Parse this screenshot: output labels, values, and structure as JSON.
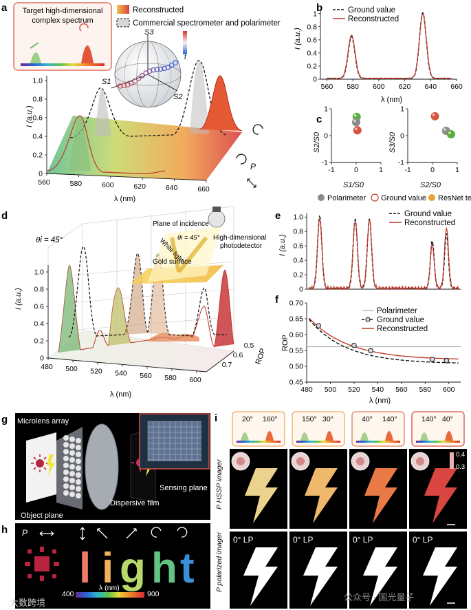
{
  "panels": {
    "a": {
      "label": "a",
      "inset_title_line1": "Target high-dimensional",
      "inset_title_line2": "complex spectrum",
      "legend_reconstructed": "Reconstructed",
      "legend_commercial": "Commercial spectrometer and polarimeter",
      "sphere_s1": "S1",
      "sphere_s2": "S2",
      "sphere_s3": "S3",
      "sphere_t": "t",
      "ylabel": "I (a.u.)",
      "xlabel": "λ (nm)",
      "plabel": "P",
      "yticks": [
        "0",
        "0.2",
        "0.4",
        "0.6",
        "0.8",
        "1.0"
      ],
      "xticks": [
        "560",
        "580",
        "600",
        "620",
        "640",
        "660"
      ]
    },
    "b": {
      "label": "b",
      "legend_ground": "Ground value",
      "legend_reconstructed": "Reconstructed",
      "ylabel": "I (a.u.)",
      "xlabel": "λ (nm)",
      "yticks": [
        "0",
        "0.2",
        "0.4",
        "0.6",
        "0.8",
        "1"
      ],
      "xticks": [
        "560",
        "580",
        "600",
        "620",
        "640",
        "660"
      ]
    },
    "c": {
      "label": "c",
      "left_ylabel": "S2/S0",
      "left_xlabel": "S1/S0",
      "right_ylabel": "S3/S0",
      "right_xlabel": "S2/S0",
      "yticks": [
        "1",
        "0",
        "-1"
      ],
      "xticks": [
        "-1",
        "0",
        "1"
      ],
      "legend_polarimeter": "Polarimeter",
      "legend_ground": "Ground value",
      "legend_resnet": "ResNet test"
    },
    "d": {
      "label": "d",
      "theta": "θi = 45°",
      "plane": "Plane of incidence",
      "white_light": "White light",
      "theta_small": "θi = 45°",
      "detector_line1": "High-dimensional",
      "detector_line2": "photodetector",
      "gold": "Gold surface",
      "ylabel": "I (a.u.)",
      "xlabel": "λ (nm)",
      "rop_label": "ROP",
      "yticks": [
        "0",
        "0.2",
        "0.4",
        "0.6",
        "0.8",
        "1.0"
      ],
      "xticks": [
        "480",
        "500",
        "520",
        "540",
        "560",
        "580",
        "600"
      ],
      "rticks": [
        "0.5",
        "0.6",
        "0.7"
      ]
    },
    "e": {
      "label": "e",
      "legend_ground": "Ground value",
      "legend_reconstructed": "Reconstructed",
      "ylabel": "I (a.u.)",
      "yticks": [
        "0",
        "0.2",
        "0.4",
        "0.6",
        "0.8",
        "1.0"
      ]
    },
    "f": {
      "label": "f",
      "legend_polarimeter": "Polarimeter",
      "legend_ground": "Ground value",
      "legend_reconstructed": "Reconstructed",
      "ylabel": "ROP",
      "xlabel": "λ (nm)",
      "yticks": [
        "0.45",
        "0.50",
        "0.55",
        "0.60",
        "0.65",
        "0.70"
      ],
      "xticks": [
        "480",
        "500",
        "520",
        "540",
        "560",
        "580",
        "600"
      ]
    },
    "g": {
      "label": "g",
      "microlens": "Microlens array",
      "object_plane": "Object plane",
      "sensing_plane": "Sensing plane",
      "dispersive": "Dispersive film"
    },
    "h": {
      "label": "h",
      "plabel": "P",
      "word": [
        "l",
        "i",
        "g",
        "h",
        "t"
      ],
      "scale_min": "400",
      "scale_mid": "λ (nm)",
      "scale_max": "900",
      "watermark_left": "大数跨境"
    },
    "i": {
      "label": "i",
      "angles": [
        [
          "20°",
          "160°"
        ],
        [
          "150°",
          "30°"
        ],
        [
          "40°",
          "140°"
        ],
        [
          "140°",
          "40°"
        ]
      ],
      "row1_label": "P HSSP imager",
      "row2_label": "P polarized imager",
      "lp": "0° LP",
      "scale_high": "0.4",
      "scale_low": "0.3",
      "watermark_right": "公众号 · 国光量子"
    }
  },
  "chart_data": [
    {
      "id": "b",
      "type": "line",
      "xlabel": "λ (nm)",
      "ylabel": "I (a.u.)",
      "xlim": [
        555,
        660
      ],
      "ylim": [
        0,
        1.05
      ],
      "series": [
        {
          "name": "Ground value",
          "peaks": [
            [
              579,
              0.64,
              2.6
            ],
            [
              634,
              1.0,
              2.6
            ]
          ]
        },
        {
          "name": "Reconstructed",
          "peaks": [
            [
              579,
              0.66,
              2.7
            ],
            [
              634,
              0.98,
              2.7
            ]
          ]
        }
      ]
    },
    {
      "id": "c-left",
      "type": "scatter",
      "xlabel": "S1/S0",
      "ylabel": "S2/S0",
      "xlim": [
        -1,
        1
      ],
      "ylim": [
        -1,
        1
      ],
      "points": [
        {
          "name": "green",
          "x": 0.02,
          "y": 0.7
        },
        {
          "name": "gray",
          "x": 0.0,
          "y": 0.5
        },
        {
          "name": "red",
          "x": 0.05,
          "y": 0.2
        }
      ]
    },
    {
      "id": "c-right",
      "type": "scatter",
      "xlabel": "S2/S0",
      "ylabel": "S3/S0",
      "xlim": [
        -1,
        1
      ],
      "ylim": [
        -1,
        1
      ],
      "points": [
        {
          "name": "red",
          "x": 0.1,
          "y": 0.72
        },
        {
          "name": "gray",
          "x": 0.55,
          "y": 0.18
        },
        {
          "name": "green",
          "x": 0.75,
          "y": 0.05
        }
      ]
    },
    {
      "id": "e",
      "type": "line",
      "xlim": [
        480,
        610
      ],
      "ylim": [
        0,
        1.05
      ],
      "ylabel": "I (a.u.)",
      "series": [
        {
          "name": "Ground value",
          "peaks": [
            [
              491,
              1.0,
              1.8
            ],
            [
              521,
              0.96,
              1.8
            ],
            [
              533,
              0.96,
              1.8
            ],
            [
              586,
              0.66,
              1.6
            ],
            [
              598,
              0.76,
              1.6
            ]
          ]
        },
        {
          "name": "Reconstructed",
          "peaks": [
            [
              491,
              0.97,
              1.9
            ],
            [
              521,
              0.94,
              1.9
            ],
            [
              533,
              0.94,
              1.9
            ],
            [
              586,
              0.6,
              1.7
            ],
            [
              598,
              0.84,
              1.7
            ]
          ]
        }
      ]
    },
    {
      "id": "f",
      "type": "line",
      "xlabel": "λ (nm)",
      "ylabel": "ROP",
      "xlim": [
        480,
        610
      ],
      "ylim": [
        0.45,
        0.7
      ],
      "polarimeter": 0.562,
      "ground_points": [
        [
          490,
          0.628
        ],
        [
          520,
          0.566
        ],
        [
          534,
          0.549
        ],
        [
          586,
          0.522
        ],
        [
          598,
          0.518
        ]
      ],
      "reconstructed": {
        "a": 0.18,
        "b": 0.03,
        "c": 0.52
      }
    }
  ],
  "colors": {
    "red": "#c0392b",
    "black": "#111111",
    "gray": "#aaaaaa",
    "panel_bg": "#000000"
  }
}
